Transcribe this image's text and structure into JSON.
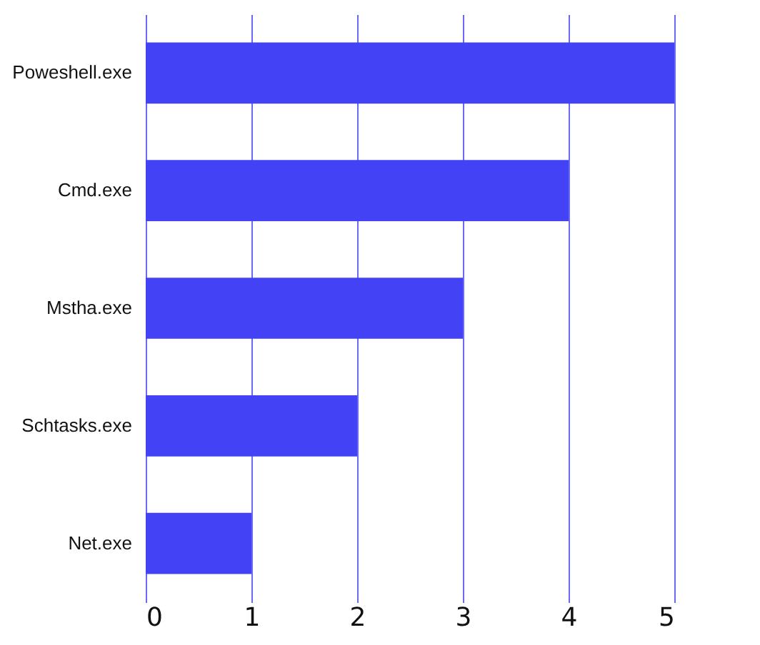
{
  "chart_data": {
    "type": "bar",
    "orientation": "horizontal",
    "categories": [
      "Poweshell.exe",
      "Cmd.exe",
      "Mstha.exe",
      "Schtasks.exe",
      "Net.exe"
    ],
    "values": [
      5,
      4,
      3,
      2,
      1
    ],
    "color": "#4343f5",
    "xlim": [
      0,
      5
    ],
    "xticks": [
      0,
      1,
      2,
      3,
      4,
      5
    ],
    "grid": "x"
  }
}
